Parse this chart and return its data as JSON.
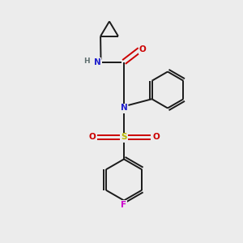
{
  "bg_color": "#ececec",
  "bond_color": "#1a1a1a",
  "atom_colors": {
    "N": "#2020cc",
    "O": "#cc0000",
    "S": "#b8b800",
    "F": "#cc00cc",
    "H": "#607070",
    "C": "#1a1a1a"
  }
}
